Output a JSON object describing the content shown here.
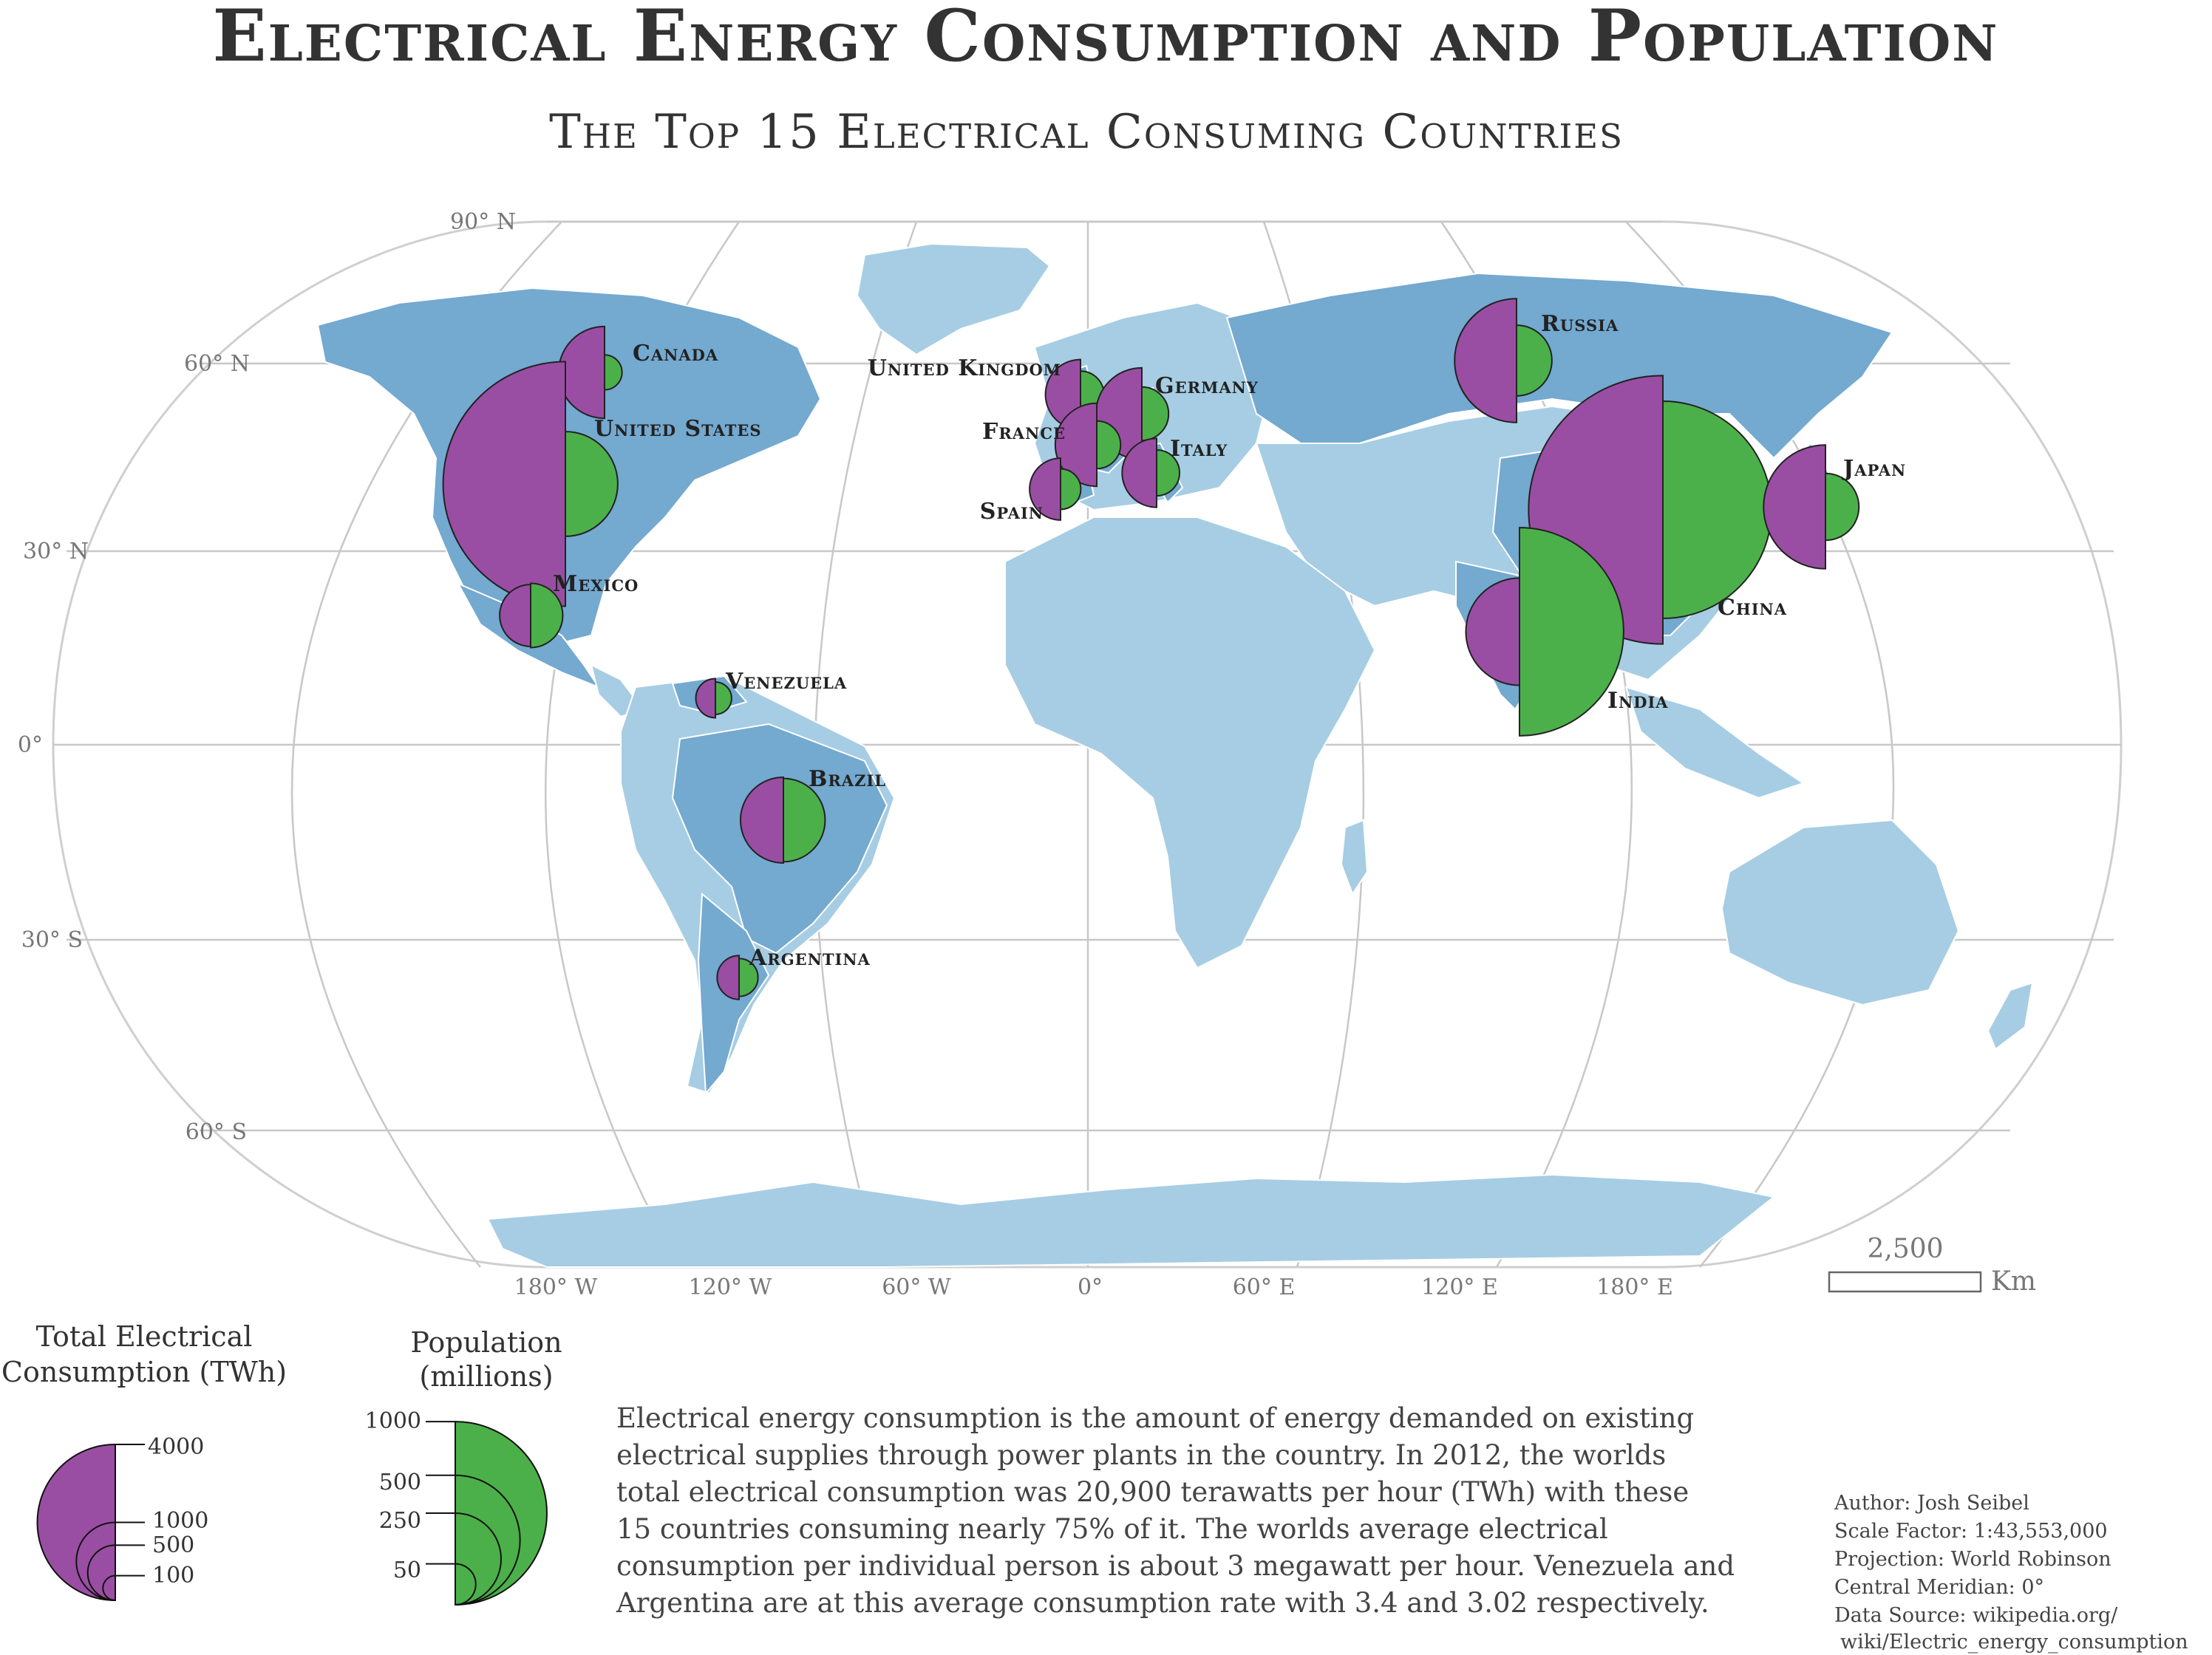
{
  "title": "Electrical Energy Consumption and Population",
  "subtitle": "The Top 15 Electrical Consuming Countries",
  "latitude_labels": [
    "90° N",
    "60° N",
    "30° N",
    "0°",
    "30° S",
    "60° S"
  ],
  "longitude_labels": [
    "180° W",
    "120° W",
    "60° W",
    "0°",
    "60° E",
    "120° E",
    "180° E"
  ],
  "colors": {
    "consumption": "#9a4ea3",
    "population": "#4cb04a",
    "land_top15": "#74a9d0",
    "land_other": "#a6cde3",
    "graticule": "#c8c8c8",
    "text": "#333333"
  },
  "countries": [
    {
      "name": "Canada",
      "consumption_twh": 550,
      "population_millions": 35
    },
    {
      "name": "United States",
      "consumption_twh": 3900,
      "population_millions": 314
    },
    {
      "name": "Mexico",
      "consumption_twh": 250,
      "population_millions": 118
    },
    {
      "name": "Venezuela",
      "consumption_twh": 100,
      "population_millions": 30
    },
    {
      "name": "Brazil",
      "consumption_twh": 480,
      "population_millions": 199
    },
    {
      "name": "Argentina",
      "consumption_twh": 125,
      "population_millions": 41
    },
    {
      "name": "United Kingdom",
      "consumption_twh": 320,
      "population_millions": 63
    },
    {
      "name": "Germany",
      "consumption_twh": 550,
      "population_millions": 82
    },
    {
      "name": "France",
      "consumption_twh": 450,
      "population_millions": 65
    },
    {
      "name": "Italy",
      "consumption_twh": 310,
      "population_millions": 60
    },
    {
      "name": "Spain",
      "consumption_twh": 250,
      "population_millions": 47
    },
    {
      "name": "Russia",
      "consumption_twh": 1000,
      "population_millions": 143
    },
    {
      "name": "China",
      "consumption_twh": 4700,
      "population_millions": 1350
    },
    {
      "name": "India",
      "consumption_twh": 750,
      "population_millions": 1240
    },
    {
      "name": "Japan",
      "consumption_twh": 1000,
      "population_millions": 128
    }
  ],
  "scale_bar": {
    "value": "2,500",
    "unit": "Km"
  },
  "legend_consumption": {
    "title_line1": "Total Electrical",
    "title_line2": "Consumption (TWh)",
    "ticks": [
      "4000",
      "1000",
      "500",
      "100"
    ]
  },
  "legend_population": {
    "title_line1": "Population",
    "title_line2": "(millions)",
    "ticks": [
      "1000",
      "500",
      "250",
      "50"
    ]
  },
  "description": [
    "Electrical energy consumption is the amount of energy demanded on existing",
    "electrical supplies through power plants in the country. In 2012, the worlds",
    "total electrical consumption was 20,900 terawatts per hour (TWh) with these",
    "15 countries consuming nearly 75% of it. The worlds average electrical",
    "consumption per individual person is about 3 megawatt per hour. Venezuela and",
    "Argentina are at this average consumption rate with 3.4 and 3.02 respectively."
  ],
  "credits": [
    "Author: Josh Seibel",
    "Scale Factor: 1:43,553,000",
    "Projection: World Robinson",
    "Central Meridian: 0°",
    "Data Source: wikipedia.org/",
    " wiki/Electric_energy_consumption"
  ]
}
